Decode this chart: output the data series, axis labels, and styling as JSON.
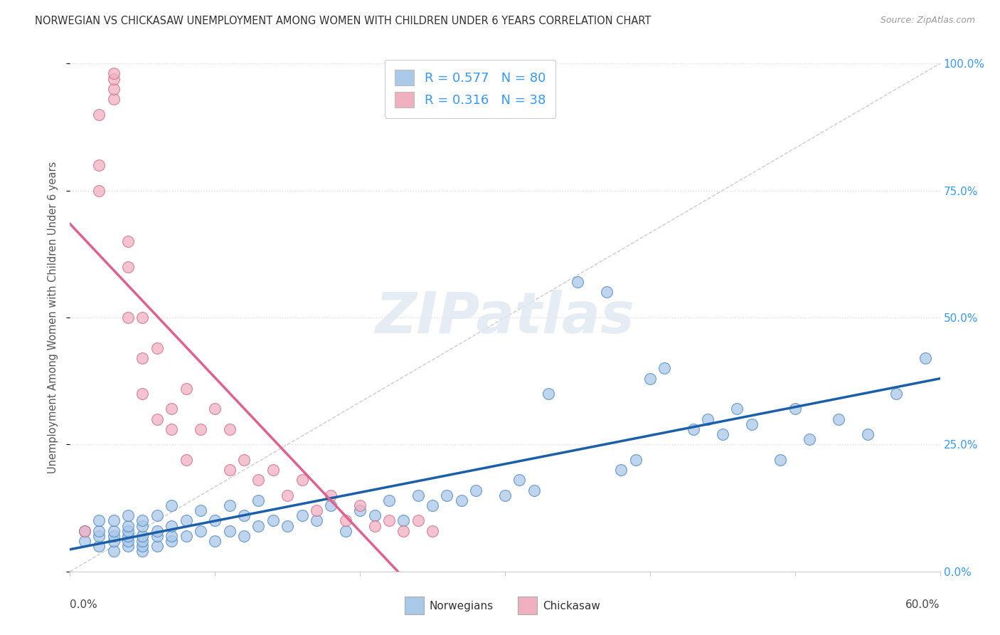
{
  "title": "NORWEGIAN VS CHICKASAW UNEMPLOYMENT AMONG WOMEN WITH CHILDREN UNDER 6 YEARS CORRELATION CHART",
  "source": "Source: ZipAtlas.com",
  "ylabel": "Unemployment Among Women with Children Under 6 years",
  "watermark": "ZIPatlas",
  "xlim": [
    0.0,
    0.6
  ],
  "ylim": [
    0.0,
    1.0
  ],
  "yticks": [
    0.0,
    0.25,
    0.5,
    0.75,
    1.0
  ],
  "ytick_labels": [
    "0.0%",
    "25.0%",
    "50.0%",
    "75.0%",
    "100.0%"
  ],
  "xtick_left": "0.0%",
  "xtick_right": "60.0%",
  "norwegian_R": 0.577,
  "norwegian_N": 80,
  "chickasaw_R": 0.316,
  "chickasaw_N": 38,
  "norwegian_fill": "#aac8e8",
  "norwegian_edge": "#4080c0",
  "chickasaw_fill": "#f0b0c0",
  "chickasaw_edge": "#d06080",
  "norwegian_line": "#1a5fa8",
  "chickasaw_line": "#e06090",
  "legend_text_color": "#3399ff",
  "background": "#ffffff",
  "grid_color": "#dddddd",
  "title_color": "#333333",
  "norwegians_x": [
    0.01,
    0.01,
    0.02,
    0.02,
    0.02,
    0.02,
    0.03,
    0.03,
    0.03,
    0.03,
    0.03,
    0.04,
    0.04,
    0.04,
    0.04,
    0.04,
    0.04,
    0.05,
    0.05,
    0.05,
    0.05,
    0.05,
    0.05,
    0.06,
    0.06,
    0.06,
    0.06,
    0.07,
    0.07,
    0.07,
    0.07,
    0.08,
    0.08,
    0.09,
    0.09,
    0.1,
    0.1,
    0.11,
    0.11,
    0.12,
    0.12,
    0.13,
    0.13,
    0.14,
    0.15,
    0.16,
    0.17,
    0.18,
    0.19,
    0.2,
    0.21,
    0.22,
    0.23,
    0.24,
    0.25,
    0.26,
    0.27,
    0.28,
    0.3,
    0.31,
    0.32,
    0.33,
    0.35,
    0.37,
    0.38,
    0.39,
    0.4,
    0.41,
    0.43,
    0.44,
    0.45,
    0.46,
    0.47,
    0.49,
    0.5,
    0.51,
    0.53,
    0.55,
    0.57,
    0.59
  ],
  "norwegians_y": [
    0.06,
    0.08,
    0.05,
    0.07,
    0.08,
    0.1,
    0.04,
    0.06,
    0.07,
    0.08,
    0.1,
    0.05,
    0.06,
    0.07,
    0.08,
    0.09,
    0.11,
    0.04,
    0.05,
    0.06,
    0.07,
    0.09,
    0.1,
    0.05,
    0.07,
    0.08,
    0.11,
    0.06,
    0.07,
    0.09,
    0.13,
    0.07,
    0.1,
    0.08,
    0.12,
    0.06,
    0.1,
    0.08,
    0.13,
    0.07,
    0.11,
    0.09,
    0.14,
    0.1,
    0.09,
    0.11,
    0.1,
    0.13,
    0.08,
    0.12,
    0.11,
    0.14,
    0.1,
    0.15,
    0.13,
    0.15,
    0.14,
    0.16,
    0.15,
    0.18,
    0.16,
    0.35,
    0.57,
    0.55,
    0.2,
    0.22,
    0.38,
    0.4,
    0.28,
    0.3,
    0.27,
    0.32,
    0.29,
    0.22,
    0.32,
    0.26,
    0.3,
    0.27,
    0.35,
    0.42
  ],
  "chickasaw_x": [
    0.01,
    0.02,
    0.02,
    0.02,
    0.03,
    0.03,
    0.03,
    0.03,
    0.04,
    0.04,
    0.04,
    0.05,
    0.05,
    0.05,
    0.06,
    0.06,
    0.07,
    0.07,
    0.08,
    0.08,
    0.09,
    0.1,
    0.11,
    0.11,
    0.12,
    0.13,
    0.14,
    0.15,
    0.16,
    0.17,
    0.18,
    0.19,
    0.2,
    0.21,
    0.22,
    0.23,
    0.24,
    0.25
  ],
  "chickasaw_y": [
    0.08,
    0.75,
    0.8,
    0.9,
    0.93,
    0.95,
    0.97,
    0.98,
    0.6,
    0.65,
    0.5,
    0.42,
    0.5,
    0.35,
    0.44,
    0.3,
    0.28,
    0.32,
    0.36,
    0.22,
    0.28,
    0.32,
    0.2,
    0.28,
    0.22,
    0.18,
    0.2,
    0.15,
    0.18,
    0.12,
    0.15,
    0.1,
    0.13,
    0.09,
    0.1,
    0.08,
    0.1,
    0.08
  ],
  "ref_line_color": "#cccccc",
  "ref_line_style": "--"
}
